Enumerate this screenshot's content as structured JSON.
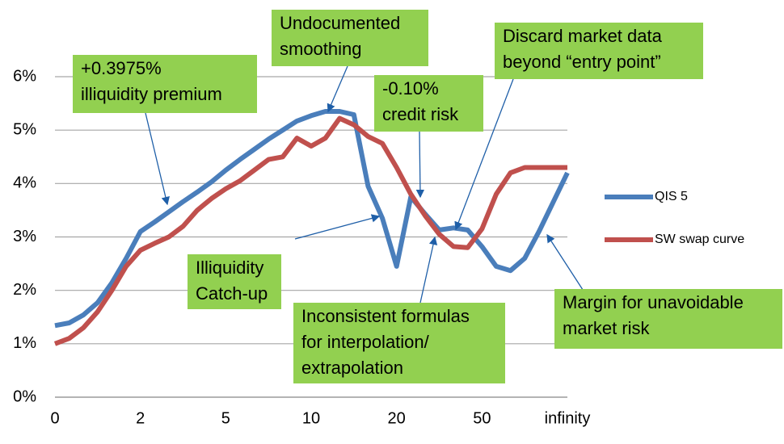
{
  "chart_data": {
    "type": "line",
    "categories": [
      "0",
      null,
      null,
      null,
      null,
      null,
      "2",
      null,
      null,
      null,
      null,
      null,
      "5",
      null,
      null,
      null,
      null,
      null,
      "10",
      null,
      null,
      null,
      null,
      null,
      "20",
      null,
      null,
      null,
      null,
      null,
      "50",
      null,
      null,
      null,
      null,
      null,
      "infinity"
    ],
    "series": [
      {
        "name": "QIS 5",
        "color": "#4a7ebb",
        "values": [
          1.34,
          1.39,
          1.54,
          1.77,
          2.14,
          2.6,
          3.1,
          3.28,
          3.47,
          3.66,
          3.84,
          4.03,
          4.25,
          4.45,
          4.64,
          4.83,
          5.0,
          5.17,
          5.27,
          5.35,
          5.35,
          5.29,
          3.95,
          3.35,
          2.45,
          3.75,
          3.43,
          3.13,
          3.17,
          3.13,
          2.82,
          2.45,
          2.37,
          2.6,
          3.1,
          3.65,
          4.2
        ]
      },
      {
        "name": "SW swap curve",
        "color": "#c0504d",
        "values": [
          1.0,
          1.1,
          1.3,
          1.6,
          2.0,
          2.45,
          2.75,
          2.88,
          3.0,
          3.2,
          3.5,
          3.72,
          3.9,
          4.05,
          4.25,
          4.45,
          4.5,
          4.85,
          4.7,
          4.85,
          5.22,
          5.1,
          4.88,
          4.75,
          4.3,
          3.8,
          3.4,
          3.05,
          2.82,
          2.8,
          3.15,
          3.8,
          4.2,
          4.3,
          4.3,
          4.3,
          4.3
        ]
      }
    ],
    "ylim": [
      0,
      6
    ],
    "yticks": [
      {
        "value": 0,
        "label": "0%"
      },
      {
        "value": 1,
        "label": "1%"
      },
      {
        "value": 2,
        "label": "2%"
      },
      {
        "value": 3,
        "label": "3%"
      },
      {
        "value": 4,
        "label": "4%"
      },
      {
        "value": 5,
        "label": "5%"
      },
      {
        "value": 6,
        "label": "6%"
      }
    ],
    "grid": true,
    "legend": "right",
    "annotations": [
      {
        "text": [
          "+0.3975%",
          "illiquidity premium"
        ]
      },
      {
        "text": [
          "Undocumented",
          "smoothing"
        ]
      },
      {
        "text": [
          "Discard market data",
          "beyond “entry point”"
        ]
      },
      {
        "text": [
          "-0.10%",
          "credit risk"
        ]
      },
      {
        "text": [
          "Illiquidity",
          "Catch-up"
        ]
      },
      {
        "text": [
          "Inconsistent formulas",
          "for interpolation/",
          "extrapolation"
        ]
      },
      {
        "text": [
          "Margin for unavoidable",
          "market risk"
        ]
      }
    ]
  }
}
